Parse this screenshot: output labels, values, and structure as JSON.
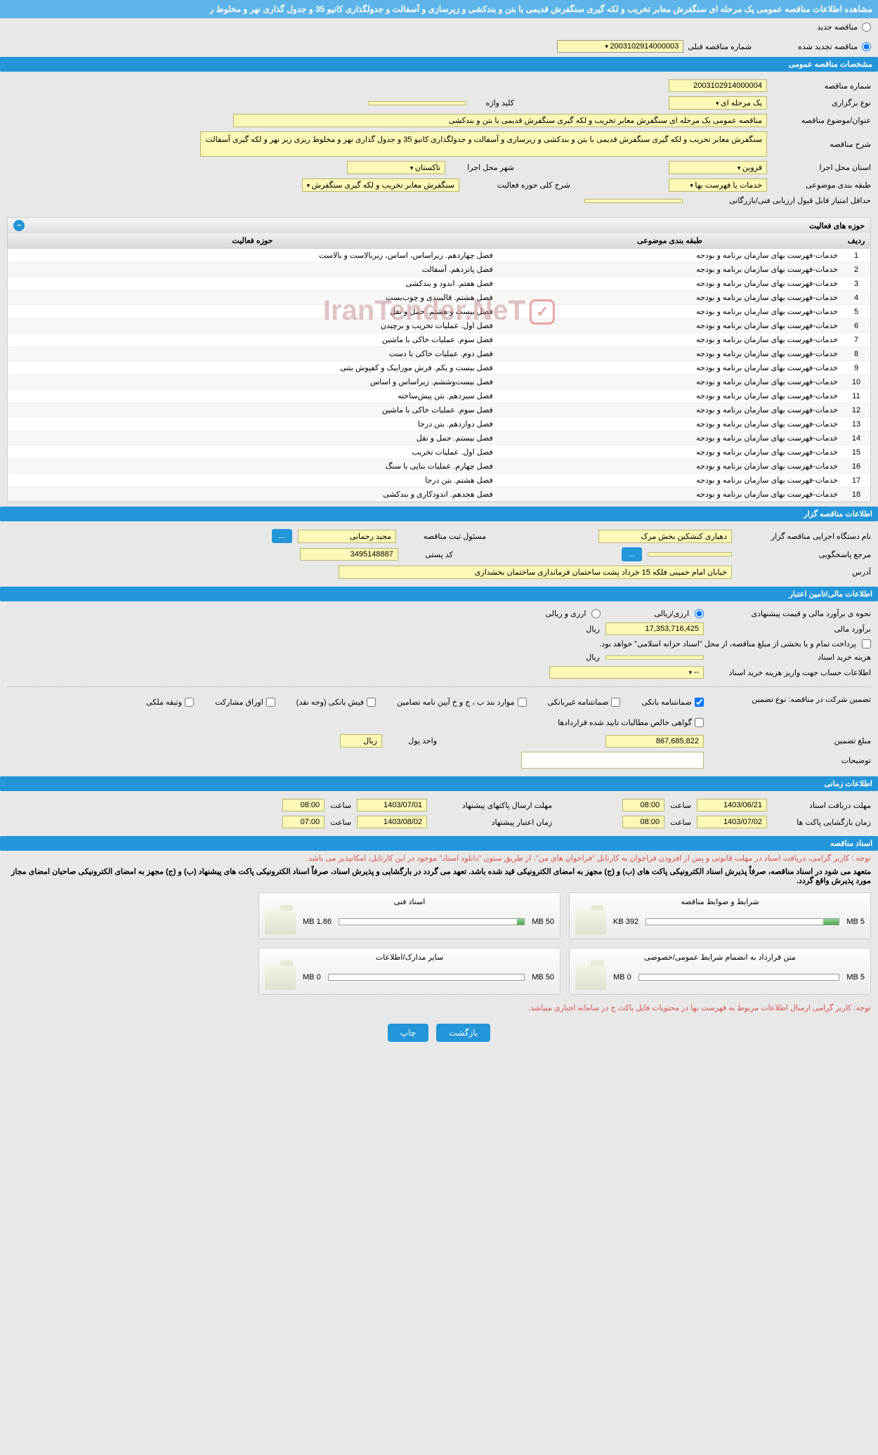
{
  "pageTitle": "مشاهده اطلاعات مناقصه عمومی یک مرحله ای سنگفرش معابر تخریب و لکه گیری سنگفرش قدیمی با بتن و بندکشی و زیرسازی و آسفالت و جدولگذاری کانیو 35 و جدول گذاری نهر و مخلوط ر",
  "radios": {
    "new": "مناقصه جدید",
    "renewed": "مناقصه تجدید شده",
    "prevLabel": "شماره مناقصه قبلی",
    "prevValue": "2003102914000003"
  },
  "sections": {
    "general": "مشخصات مناقصه عمومی",
    "activities": "حوزه های فعالیت",
    "organizer": "اطلاعات مناقصه گزار",
    "financial": "اطلاعات مالی/تامین اعتبار",
    "timing": "اطلاعات زمانی",
    "docs": "اسناد مناقصه"
  },
  "general": {
    "tenderNoLabel": "شماره مناقصه",
    "tenderNo": "2003102914000004",
    "typeLabel": "نوع برگزاری",
    "type": "یک مرحله ای",
    "keywordLabel": "کلید واژه",
    "keyword": "",
    "subjectLabel": "عنوان/موضوع مناقصه",
    "subject": "مناقصه عمومی یک مرحله ای سنگفرش معابر تخریب و لکه گیری سنگفرش قدیمی با بتن و بندکشی",
    "descLabel": "شرح مناقصه",
    "desc": "سنگفرش معابر تخریب و لکه گیری سنگفرش قدیمی با بتن و بندکشی و زیرسازی و آسفالت و جدولگذاری کانیو 35 و جدول گذاری نهر و مخلوط ریزی زیر نهر و لکه گیری آسفالت",
    "provinceLabel": "استان محل اجرا",
    "province": "قزوین",
    "cityLabel": "شهر محل اجرا",
    "city": "تاکستان",
    "categoryLabel": "طبقه بندی موضوعی",
    "category": "خدمات یا فهرست بها",
    "actDescLabel": "شرح کلی حوزه فعالیت",
    "actDesc": "سنگفرش معابر تخریب و لکه گیری سنگفرش",
    "minScoreLabel": "حداقل امتیاز قابل قبول ارزیابی فنی/بازرگانی",
    "minScore": ""
  },
  "activitiesTable": {
    "headers": {
      "num": "ردیف",
      "cat": "طبقه بندی موضوعی",
      "field": "حوزه فعالیت"
    },
    "rows": [
      {
        "n": "1",
        "cat": "خدمات-فهرست بهای سازمان برنامه و بودجه",
        "field": "فصل چهاردهم. زیراساس، اساس، زیربالاست  و بالاست"
      },
      {
        "n": "2",
        "cat": "خدمات-فهرست بهای سازمان برنامه و بودجه",
        "field": "فصل پانزدهم. آسفالت"
      },
      {
        "n": "3",
        "cat": "خدمات-فهرست بهای سازمان برنامه و بودجه",
        "field": "فصل هفتم. اندود و بندکشی"
      },
      {
        "n": "4",
        "cat": "خدمات-فهرست بهای سازمان برنامه و بودجه",
        "field": "فصل هشتم. قالببندی و چوب‌بست"
      },
      {
        "n": "5",
        "cat": "خدمات-فهرست بهای سازمان برنامه و بودجه",
        "field": "فصل بیست و هشتم. حمل و نقل"
      },
      {
        "n": "6",
        "cat": "خدمات-فهرست بهای سازمان برنامه و بودجه",
        "field": "فصل اول. عملیات تخریب و برچیدن"
      },
      {
        "n": "7",
        "cat": "خدمات-فهرست بهای سازمان برنامه و بودجه",
        "field": "فصل سوم. عملیات خاکی با ماشین"
      },
      {
        "n": "8",
        "cat": "خدمات-فهرست بهای سازمان برنامه و بودجه",
        "field": "فصل دوم. عملیات خاکی با دست"
      },
      {
        "n": "9",
        "cat": "خدمات-فهرست بهای سازمان برنامه و بودجه",
        "field": "فصل بیست و یکم. فرش موزاییک و کفپوش بتنی"
      },
      {
        "n": "10",
        "cat": "خدمات-فهرست بهای سازمان برنامه و بودجه",
        "field": "فصل بیست‌وششم. زیراساس و اساس"
      },
      {
        "n": "11",
        "cat": "خدمات-فهرست بهای سازمان برنامه و بودجه",
        "field": "فصل سیزدهم. بتن پیش‌ساخته"
      },
      {
        "n": "12",
        "cat": "خدمات-فهرست بهای سازمان برنامه و بودجه",
        "field": "فصل سوم. عملیات خاکی با ماشین"
      },
      {
        "n": "13",
        "cat": "خدمات-فهرست بهای سازمان برنامه و بودجه",
        "field": "فصل دوازدهم. بتن درجا"
      },
      {
        "n": "14",
        "cat": "خدمات-فهرست بهای سازمان برنامه و بودجه",
        "field": "فصل بیستم. حمل و نقل"
      },
      {
        "n": "15",
        "cat": "خدمات-فهرست بهای سازمان برنامه و بودجه",
        "field": "فصل اول. عملیات تخریب"
      },
      {
        "n": "16",
        "cat": "خدمات-فهرست بهای سازمان برنامه و بودجه",
        "field": "فصل چهارم. عملیات بنایی با سنگ"
      },
      {
        "n": "17",
        "cat": "خدمات-فهرست بهای سازمان برنامه و بودجه",
        "field": "فصل هشتم. بتن درجا"
      },
      {
        "n": "18",
        "cat": "خدمات-فهرست بهای سازمان برنامه و بودجه",
        "field": "فصل هجدهم. اندودکاری و بندکشی"
      }
    ]
  },
  "organizer": {
    "agencyLabel": "نام دستگاه اجرایی مناقصه گزار",
    "agency": "دهیاری کنشکین بخش مرک",
    "regLabel": "مسئول ثبت مناقصه",
    "reg": "مجید رحمانی",
    "moreBtn": "...",
    "responderLabel": "مرجع پاسخگویی",
    "responder": "",
    "postalLabel": "کد پستی",
    "postal": "3495148887",
    "addressLabel": "آدرس",
    "address": "خیابان امام   خمینی فلکه 15 خرداد پشت ساختمان فرمانداری ساختمان بخشداری"
  },
  "financial": {
    "estimateMethodLabel": "نحوه ی برآورد مالی و قیمت پیشنهادی",
    "opt1": "ارزی/ریالی",
    "opt2": "ارزی و ریالی",
    "estimateLabel": "برآورد مالی",
    "estimate": "17,353,716,425",
    "currency": "ریال",
    "paymentNote": "پرداخت تمام و یا بخشی از مبلغ مناقصه، از محل \"اسناد خزانه اسلامی\" خواهد بود.",
    "docCostLabel": "هزینه خرید اسناد",
    "docCost": "",
    "docCostCurrency": "ریال",
    "accountLabel": "اطلاعات حساب جهت واریز هزینه خرید اسناد",
    "account": "--",
    "guaranteeLabel": "تضمین شرکت در مناقصه:   نوع تضمین",
    "gt1": "ضمانتنامه بانکی",
    "gt2": "ضمانتنامه غیربانکی",
    "gt3": "موارد بند ب ، ج و خ آیین نامه تضامین",
    "gt4": "فیش بانکی (وجه نقد)",
    "gt5": "اوراق مشارکت",
    "gt6": "وثیقه ملکی",
    "gt7": "گواهی خالص مطالبات تایید شده قراردادها",
    "guaranteeAmtLabel": "مبلغ تضمین",
    "guaranteeAmt": "867,685,822",
    "unitLabel": "واحد پول",
    "unit": "ریال",
    "notesLabel": "توضیحات"
  },
  "timing": {
    "receiveLabel": "مهلت دریافت اسناد",
    "receiveDate": "1403/06/21",
    "receiveTimeLabel": "ساعت",
    "receiveTime": "08:00",
    "sendLabel": "مهلت ارسال پاکتهای پیشنهاد",
    "sendDate": "1403/07/01",
    "sendTimeLabel": "ساعت",
    "sendTime": "08:00",
    "openLabel": "زمان بازگشایی پاکت ها",
    "openDate": "1403/07/02",
    "openTimeLabel": "ساعت",
    "openTime": "08:00",
    "validLabel": "زمان اعتبار پیشنهاد",
    "validDate": "1403/08/02",
    "validTimeLabel": "ساعت",
    "validTime": "07:00"
  },
  "docs": {
    "notice1": "توجه : کاربر گرامی، دریافت اسناد در مهلت قانونی و پس از افزودن فراخوان به کارتابل \"فراخوان های من\"، از طریق ستون \"دانلود اسناد\" موجود در این کارتابل، امکانپذیر می باشد.",
    "notice2": "متعهد می شود در اسناد مناقصه، صرفاً پذیرش اسناد الکترونیکی پاکت های (ب) و (ج) مجهز به امضای الکترونیکی قید شده باشد. تعهد می گردد در بارگشایی و پذیرش اسناد، صرفاً اسناد الکترونیکی پاکت های پیشنهاد (ب) و (ج) مجهز به امضای الکترونیکی صاحبان امضای مجاز مورد پذیرش واقع گردد.",
    "cards": [
      {
        "title": "شرایط و ضوابط مناقصه",
        "size": "392 KB",
        "max": "5 MB",
        "fill": 8
      },
      {
        "title": "اسناد فنی",
        "size": "1.86 MB",
        "max": "50 MB",
        "fill": 4
      },
      {
        "title": "متن قرارداد به انضمام شرایط عمومی/خصوصی",
        "size": "0 MB",
        "max": "5 MB",
        "fill": 0
      },
      {
        "title": "سایر مدارک/اطلاعات",
        "size": "0 MB",
        "max": "50 MB",
        "fill": 0
      }
    ],
    "notice3": "توجه: کاربر گرامی ارسال اطلاعات مربوط به فهرست بها در محتویات فایل پاکت ج در سامانه اجباری میباشد."
  },
  "buttons": {
    "back": "بازگشت",
    "print": "چاپ"
  },
  "watermark": "IranTender.NeT"
}
